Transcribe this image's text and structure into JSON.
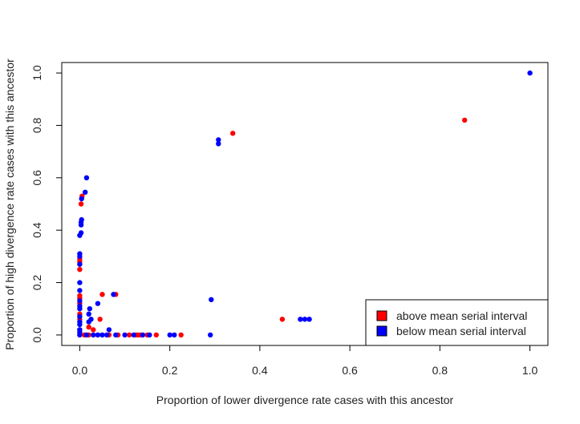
{
  "chart_data": {
    "type": "scatter",
    "title": "",
    "xlabel": "Proportion of lower divergence rate cases with this ancestor",
    "ylabel": "Proportion of high divergence rate cases with this ancestor",
    "xlim": [
      -0.04,
      1.04
    ],
    "ylim": [
      -0.04,
      1.04
    ],
    "xticks": [
      "0.0",
      "0.2",
      "0.4",
      "0.6",
      "0.8",
      "1.0"
    ],
    "yticks": [
      "0.0",
      "0.2",
      "0.4",
      "0.6",
      "0.8",
      "1.0"
    ],
    "grid": false,
    "legend_position": "bottom-right",
    "series": [
      {
        "name": "above mean serial interval",
        "color": "#ff0000",
        "points": [
          [
            0.0,
            0.0
          ],
          [
            0.0,
            0.02
          ],
          [
            0.0,
            0.06
          ],
          [
            0.0,
            0.08
          ],
          [
            0.0,
            0.12
          ],
          [
            0.0,
            0.14
          ],
          [
            0.0,
            0.15
          ],
          [
            0.0,
            0.25
          ],
          [
            0.0,
            0.28
          ],
          [
            0.0,
            0.29
          ],
          [
            0.003,
            0.5
          ],
          [
            0.005,
            0.53
          ],
          [
            0.01,
            0.0
          ],
          [
            0.02,
            0.0
          ],
          [
            0.02,
            0.03
          ],
          [
            0.03,
            0.02
          ],
          [
            0.04,
            0.0
          ],
          [
            0.045,
            0.06
          ],
          [
            0.05,
            0.155
          ],
          [
            0.065,
            0.0
          ],
          [
            0.08,
            0.155
          ],
          [
            0.085,
            0.0
          ],
          [
            0.11,
            0.0
          ],
          [
            0.125,
            0.0
          ],
          [
            0.13,
            0.0
          ],
          [
            0.135,
            0.0
          ],
          [
            0.15,
            0.0
          ],
          [
            0.17,
            0.0
          ],
          [
            0.225,
            0.0
          ],
          [
            0.34,
            0.77
          ],
          [
            0.45,
            0.06
          ],
          [
            0.855,
            0.82
          ]
        ]
      },
      {
        "name": "below mean serial interval",
        "color": "#0000ff",
        "points": [
          [
            0.0,
            0.0
          ],
          [
            0.0,
            0.01
          ],
          [
            0.0,
            0.02
          ],
          [
            0.0,
            0.04
          ],
          [
            0.0,
            0.05
          ],
          [
            0.0,
            0.07
          ],
          [
            0.0,
            0.1
          ],
          [
            0.0,
            0.11
          ],
          [
            0.0,
            0.13
          ],
          [
            0.0,
            0.17
          ],
          [
            0.0,
            0.2
          ],
          [
            0.0,
            0.27
          ],
          [
            0.0,
            0.3
          ],
          [
            0.0,
            0.31
          ],
          [
            0.0,
            0.38
          ],
          [
            0.003,
            0.39
          ],
          [
            0.003,
            0.42
          ],
          [
            0.003,
            0.43
          ],
          [
            0.004,
            0.44
          ],
          [
            0.004,
            0.52
          ],
          [
            0.012,
            0.545
          ],
          [
            0.015,
            0.6
          ],
          [
            0.015,
            0.0
          ],
          [
            0.02,
            0.05
          ],
          [
            0.02,
            0.08
          ],
          [
            0.022,
            0.1
          ],
          [
            0.025,
            0.06
          ],
          [
            0.03,
            0.0
          ],
          [
            0.04,
            0.0
          ],
          [
            0.04,
            0.12
          ],
          [
            0.05,
            0.0
          ],
          [
            0.06,
            0.0
          ],
          [
            0.065,
            0.02
          ],
          [
            0.075,
            0.155
          ],
          [
            0.08,
            0.0
          ],
          [
            0.1,
            0.0
          ],
          [
            0.12,
            0.0
          ],
          [
            0.14,
            0.0
          ],
          [
            0.155,
            0.0
          ],
          [
            0.2,
            0.0
          ],
          [
            0.21,
            0.0
          ],
          [
            0.29,
            0.0
          ],
          [
            0.292,
            0.135
          ],
          [
            0.308,
            0.73
          ],
          [
            0.308,
            0.745
          ],
          [
            0.49,
            0.06
          ],
          [
            0.5,
            0.06
          ],
          [
            0.51,
            0.06
          ],
          [
            1.0,
            1.0
          ]
        ]
      }
    ]
  }
}
